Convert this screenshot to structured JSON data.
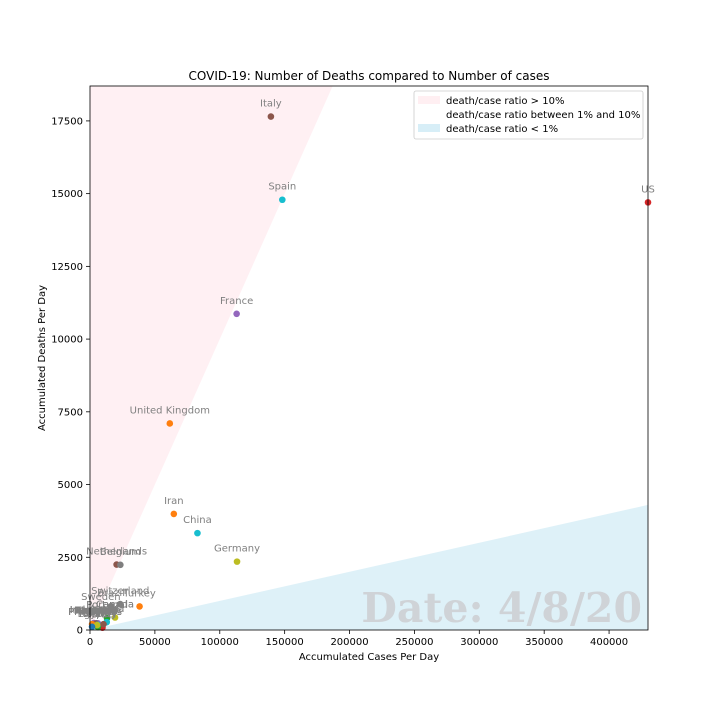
{
  "chart_data": {
    "type": "scatter",
    "title": "COVID-19: Number of Deaths compared to Number of cases",
    "xlabel": "Accumulated Cases Per Day",
    "ylabel": "Accumulated Deaths Per Day",
    "xlim": [
      0,
      430000
    ],
    "ylim": [
      0,
      18700
    ],
    "xticks": [
      0,
      50000,
      100000,
      150000,
      200000,
      250000,
      300000,
      350000,
      400000
    ],
    "yticks": [
      0,
      2500,
      5000,
      7500,
      10000,
      12500,
      15000,
      17500
    ],
    "grid": false,
    "legend_position": "top-right",
    "date_label": "Date: 4/8/20",
    "regions": [
      {
        "label": "death/case ratio > 10%",
        "ratio_min": 0.1,
        "color": "#ffe4e9"
      },
      {
        "label": "death/case ratio between 1% and 10%",
        "color": "#ffffff"
      },
      {
        "label": "death/case ratio < 1%",
        "ratio_max": 0.01,
        "color": "#bde3f2"
      }
    ],
    "points": [
      {
        "name": "US",
        "x": 430000,
        "y": 14700,
        "color": "#d62728"
      },
      {
        "name": "Italy",
        "x": 139400,
        "y": 17650,
        "color": "#8c564b"
      },
      {
        "name": "Spain",
        "x": 148200,
        "y": 14790,
        "color": "#17becf"
      },
      {
        "name": "France",
        "x": 113000,
        "y": 10870,
        "color": "#9467bd"
      },
      {
        "name": "United Kingdom",
        "x": 61500,
        "y": 7100,
        "color": "#ff7f0e"
      },
      {
        "name": "Iran",
        "x": 64600,
        "y": 3990,
        "color": "#ff7f0e"
      },
      {
        "name": "China",
        "x": 82800,
        "y": 3330,
        "color": "#17becf"
      },
      {
        "name": "Germany",
        "x": 113300,
        "y": 2350,
        "color": "#bcbd22"
      },
      {
        "name": "Netherlands",
        "x": 20500,
        "y": 2250,
        "color": "#8c564b"
      },
      {
        "name": "Belgium",
        "x": 23400,
        "y": 2240,
        "color": "#7f7f7f"
      },
      {
        "name": "Switzerland",
        "x": 23300,
        "y": 890,
        "color": "#7f7f7f"
      },
      {
        "name": "Turkey",
        "x": 38200,
        "y": 810,
        "color": "#ff7f0e"
      },
      {
        "name": "Brazil",
        "x": 16200,
        "y": 820,
        "color": "#7f7f7f"
      },
      {
        "name": "Sweden",
        "x": 8400,
        "y": 690,
        "color": "#7f7f7f"
      },
      {
        "name": "Canada",
        "x": 19300,
        "y": 430,
        "color": "#bcbd22"
      },
      {
        "name": "Portugal",
        "x": 13100,
        "y": 410,
        "color": "#2ca02c"
      },
      {
        "name": "Indonesia",
        "x": 3000,
        "y": 240,
        "color": "#9467bd"
      },
      {
        "name": "Austria",
        "x": 12900,
        "y": 270,
        "color": "#17becf"
      },
      {
        "name": "Denmark",
        "x": 5400,
        "y": 230,
        "color": "#1f77b4"
      },
      {
        "name": "Ireland",
        "x": 6100,
        "y": 230,
        "color": "#9467bd"
      },
      {
        "name": "Romania",
        "x": 4700,
        "y": 200,
        "color": "#e377c2"
      },
      {
        "name": "Philippines",
        "x": 3900,
        "y": 180,
        "color": "#d62728"
      },
      {
        "name": "Ecuador",
        "x": 4500,
        "y": 220,
        "color": "#8c564b"
      },
      {
        "name": "Israel",
        "x": 9600,
        "y": 80,
        "color": "#d62728"
      },
      {
        "name": "Norway",
        "x": 6100,
        "y": 100,
        "color": "#2ca02c"
      },
      {
        "name": "Algeria",
        "x": 1600,
        "y": 200,
        "color": "#ff7f0e"
      },
      {
        "name": "India",
        "x": 5900,
        "y": 180,
        "color": "#17becf"
      },
      {
        "name": "Korea",
        "x": 10400,
        "y": 200,
        "color": "#8c564b"
      },
      {
        "name": "Poland",
        "x": 5500,
        "y": 170,
        "color": "#bcbd22"
      },
      {
        "name": "Egypt",
        "x": 1560,
        "y": 110,
        "color": "#1f77b4"
      }
    ],
    "crowded_labels": [
      {
        "name": "Canada"
      },
      {
        "name": "Portugal"
      },
      {
        "name": "Austria"
      },
      {
        "name": "Denmark"
      },
      {
        "name": "Ireland"
      },
      {
        "name": "Romania"
      },
      {
        "name": "Philippines"
      },
      {
        "name": "Indonesia"
      },
      {
        "name": "Ecuador"
      },
      {
        "name": "Israel"
      },
      {
        "name": "Norway"
      },
      {
        "name": "Algeria"
      }
    ]
  }
}
